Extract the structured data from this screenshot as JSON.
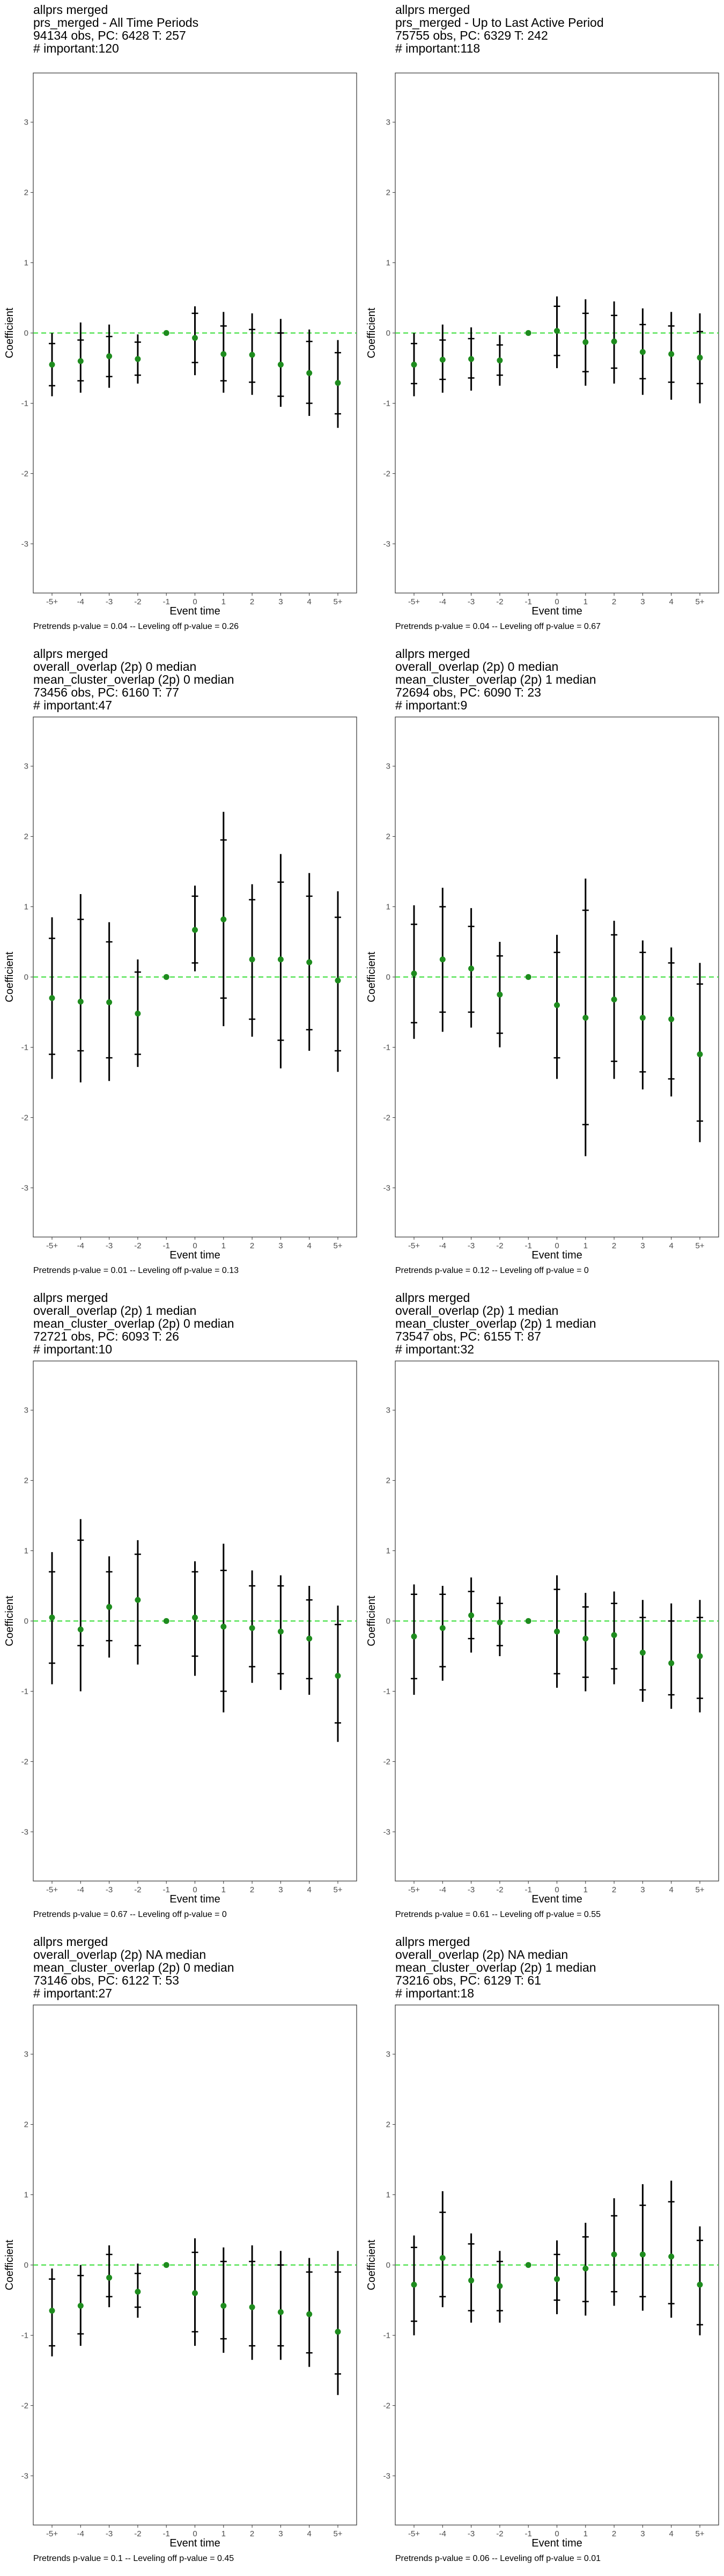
{
  "chart_data": [
    {
      "type": "scatter",
      "title_lines": [
        "allprs merged",
        "prs_merged - All Time Periods",
        "94134 obs, PC: 6428 T: 257",
        "# important:120"
      ],
      "xlabel": "Event time",
      "ylabel": "Coefficient",
      "categories": [
        "-5+",
        "-4",
        "-3",
        "-2",
        "-1",
        "0",
        "1",
        "2",
        "3",
        "4",
        "5+"
      ],
      "ylim": [
        -3.7,
        3.7
      ],
      "yticks": [
        -3,
        -2,
        -1,
        0,
        1,
        2,
        3
      ],
      "reference_line": 0,
      "footer": "Pretrends p-value = 0.04 -- Leveling off p-value = 0.26",
      "estimate": [
        -0.45,
        -0.4,
        -0.33,
        -0.37,
        0,
        -0.07,
        -0.3,
        -0.31,
        -0.45,
        -0.57,
        -0.71
      ],
      "ci_outer": [
        [
          -0.9,
          0.0
        ],
        [
          -0.85,
          0.15
        ],
        [
          -0.78,
          0.12
        ],
        [
          -0.72,
          -0.02
        ],
        [
          0,
          0
        ],
        [
          -0.6,
          0.38
        ],
        [
          -0.85,
          0.3
        ],
        [
          -0.88,
          0.28
        ],
        [
          -1.05,
          0.2
        ],
        [
          -1.18,
          0.05
        ],
        [
          -1.35,
          -0.1
        ]
      ],
      "ci_inner": [
        [
          -0.75,
          -0.15
        ],
        [
          -0.68,
          -0.1
        ],
        [
          -0.62,
          -0.05
        ],
        [
          -0.6,
          -0.13
        ],
        [
          0,
          0
        ],
        [
          -0.42,
          0.28
        ],
        [
          -0.68,
          0.1
        ],
        [
          -0.7,
          0.05
        ],
        [
          -0.9,
          0.0
        ],
        [
          -1.0,
          -0.12
        ],
        [
          -1.15,
          -0.28
        ]
      ]
    },
    {
      "type": "scatter",
      "title_lines": [
        "allprs merged",
        "prs_merged - Up to Last Active Period",
        "75755 obs, PC: 6329 T: 242",
        "# important:118"
      ],
      "xlabel": "Event time",
      "ylabel": "Coefficient",
      "categories": [
        "-5+",
        "-4",
        "-3",
        "-2",
        "-1",
        "0",
        "1",
        "2",
        "3",
        "4",
        "5+"
      ],
      "ylim": [
        -3.7,
        3.7
      ],
      "yticks": [
        -3,
        -2,
        -1,
        0,
        1,
        2,
        3
      ],
      "reference_line": 0,
      "footer": "Pretrends p-value = 0.04 -- Leveling off p-value = 0.67",
      "estimate": [
        -0.45,
        -0.38,
        -0.37,
        -0.39,
        0,
        0.03,
        -0.13,
        -0.12,
        -0.27,
        -0.3,
        -0.35
      ],
      "ci_outer": [
        [
          -0.9,
          0.0
        ],
        [
          -0.85,
          0.12
        ],
        [
          -0.82,
          0.08
        ],
        [
          -0.75,
          -0.03
        ],
        [
          0,
          0
        ],
        [
          -0.5,
          0.52
        ],
        [
          -0.75,
          0.48
        ],
        [
          -0.72,
          0.45
        ],
        [
          -0.88,
          0.35
        ],
        [
          -0.95,
          0.3
        ],
        [
          -1.0,
          0.28
        ]
      ],
      "ci_inner": [
        [
          -0.72,
          -0.15
        ],
        [
          -0.66,
          -0.1
        ],
        [
          -0.64,
          -0.08
        ],
        [
          -0.6,
          -0.17
        ],
        [
          0,
          0
        ],
        [
          -0.32,
          0.38
        ],
        [
          -0.55,
          0.28
        ],
        [
          -0.5,
          0.25
        ],
        [
          -0.65,
          0.12
        ],
        [
          -0.7,
          0.1
        ],
        [
          -0.72,
          0.02
        ]
      ]
    },
    {
      "type": "scatter",
      "title_lines": [
        "allprs merged",
        "overall_overlap (2p) 0 median",
        "mean_cluster_overlap (2p) 0 median",
        "73456 obs, PC: 6160 T: 77",
        "# important:47"
      ],
      "xlabel": "Event time",
      "ylabel": "Coefficient",
      "categories": [
        "-5+",
        "-4",
        "-3",
        "-2",
        "-1",
        "0",
        "1",
        "2",
        "3",
        "4",
        "5+"
      ],
      "ylim": [
        -3.7,
        3.7
      ],
      "yticks": [
        -3,
        -2,
        -1,
        0,
        1,
        2,
        3
      ],
      "reference_line": 0,
      "footer": "Pretrends p-value = 0.01 -- Leveling off p-value = 0.13",
      "estimate": [
        -0.3,
        -0.35,
        -0.36,
        -0.52,
        0,
        0.67,
        0.82,
        0.25,
        0.25,
        0.21,
        -0.05
      ],
      "ci_outer": [
        [
          -1.45,
          0.85
        ],
        [
          -1.5,
          1.18
        ],
        [
          -1.48,
          0.78
        ],
        [
          -1.28,
          0.25
        ],
        [
          0,
          0
        ],
        [
          0.08,
          1.3
        ],
        [
          -0.7,
          2.35
        ],
        [
          -0.85,
          1.32
        ],
        [
          -1.3,
          1.75
        ],
        [
          -1.05,
          1.48
        ],
        [
          -1.35,
          1.22
        ]
      ],
      "ci_inner": [
        [
          -1.1,
          0.55
        ],
        [
          -1.05,
          0.82
        ],
        [
          -1.15,
          0.5
        ],
        [
          -1.1,
          0.07
        ],
        [
          0,
          0
        ],
        [
          0.2,
          1.15
        ],
        [
          -0.3,
          1.95
        ],
        [
          -0.6,
          1.1
        ],
        [
          -0.9,
          1.35
        ],
        [
          -0.75,
          1.15
        ],
        [
          -1.05,
          0.85
        ]
      ]
    },
    {
      "type": "scatter",
      "title_lines": [
        "allprs merged",
        "overall_overlap (2p) 0 median",
        "mean_cluster_overlap (2p) 1 median",
        "72694 obs, PC: 6090 T: 23",
        "# important:9"
      ],
      "xlabel": "Event time",
      "ylabel": "Coefficient",
      "categories": [
        "-5+",
        "-4",
        "-3",
        "-2",
        "-1",
        "0",
        "1",
        "2",
        "3",
        "4",
        "5+"
      ],
      "ylim": [
        -3.7,
        3.7
      ],
      "yticks": [
        -3,
        -2,
        -1,
        0,
        1,
        2,
        3
      ],
      "reference_line": 0,
      "footer": "Pretrends p-value = 0.12 -- Leveling off p-value = 0",
      "estimate": [
        0.05,
        0.25,
        0.12,
        -0.25,
        0,
        -0.4,
        -0.58,
        -0.32,
        -0.58,
        -0.6,
        -1.1
      ],
      "ci_outer": [
        [
          -0.88,
          1.02
        ],
        [
          -0.78,
          1.27
        ],
        [
          -0.72,
          0.98
        ],
        [
          -1.0,
          0.5
        ],
        [
          0,
          0
        ],
        [
          -1.45,
          0.6
        ],
        [
          -2.55,
          1.4
        ],
        [
          -1.45,
          0.8
        ],
        [
          -1.6,
          0.52
        ],
        [
          -1.7,
          0.42
        ],
        [
          -2.35,
          0.2
        ]
      ],
      "ci_inner": [
        [
          -0.65,
          0.75
        ],
        [
          -0.5,
          1.0
        ],
        [
          -0.5,
          0.72
        ],
        [
          -0.8,
          0.3
        ],
        [
          0,
          0
        ],
        [
          -1.15,
          0.35
        ],
        [
          -2.1,
          0.95
        ],
        [
          -1.2,
          0.6
        ],
        [
          -1.35,
          0.35
        ],
        [
          -1.45,
          0.2
        ],
        [
          -2.05,
          -0.1
        ]
      ]
    },
    {
      "type": "scatter",
      "title_lines": [
        "allprs merged",
        "overall_overlap (2p) 1 median",
        "mean_cluster_overlap (2p) 0 median",
        "72721 obs, PC: 6093 T: 26",
        "# important:10"
      ],
      "xlabel": "Event time",
      "ylabel": "Coefficient",
      "categories": [
        "-5+",
        "-4",
        "-3",
        "-2",
        "-1",
        "0",
        "1",
        "2",
        "3",
        "4",
        "5+"
      ],
      "ylim": [
        -3.7,
        3.7
      ],
      "yticks": [
        -3,
        -2,
        -1,
        0,
        1,
        2,
        3
      ],
      "reference_line": 0,
      "footer": "Pretrends p-value = 0.67 -- Leveling off p-value = 0",
      "estimate": [
        0.05,
        -0.12,
        0.2,
        0.3,
        0,
        0.05,
        -0.08,
        -0.1,
        -0.15,
        -0.25,
        -0.78
      ],
      "ci_outer": [
        [
          -0.9,
          0.98
        ],
        [
          -1.0,
          1.45
        ],
        [
          -0.52,
          0.92
        ],
        [
          -0.62,
          1.15
        ],
        [
          0,
          0
        ],
        [
          -0.78,
          0.85
        ],
        [
          -1.3,
          1.1
        ],
        [
          -0.88,
          0.72
        ],
        [
          -0.98,
          0.65
        ],
        [
          -1.05,
          0.5
        ],
        [
          -1.72,
          0.22
        ]
      ],
      "ci_inner": [
        [
          -0.6,
          0.7
        ],
        [
          -0.35,
          1.15
        ],
        [
          -0.28,
          0.7
        ],
        [
          -0.35,
          0.95
        ],
        [
          0,
          0
        ],
        [
          -0.5,
          0.7
        ],
        [
          -1.0,
          0.72
        ],
        [
          -0.65,
          0.5
        ],
        [
          -0.75,
          0.5
        ],
        [
          -0.82,
          0.3
        ],
        [
          -1.45,
          -0.05
        ]
      ]
    },
    {
      "type": "scatter",
      "title_lines": [
        "allprs merged",
        "overall_overlap (2p) 1 median",
        "mean_cluster_overlap (2p) 1 median",
        "73547 obs, PC: 6155 T: 87",
        "# important:32"
      ],
      "xlabel": "Event time",
      "ylabel": "Coefficient",
      "categories": [
        "-5+",
        "-4",
        "-3",
        "-2",
        "-1",
        "0",
        "1",
        "2",
        "3",
        "4",
        "5+"
      ],
      "ylim": [
        -3.7,
        3.7
      ],
      "yticks": [
        -3,
        -2,
        -1,
        0,
        1,
        2,
        3
      ],
      "reference_line": 0,
      "footer": "Pretrends p-value = 0.61 -- Leveling off p-value = 0.55",
      "estimate": [
        -0.22,
        -0.1,
        0.08,
        -0.02,
        0,
        -0.15,
        -0.25,
        -0.2,
        -0.45,
        -0.6,
        -0.5
      ],
      "ci_outer": [
        [
          -1.05,
          0.52
        ],
        [
          -0.85,
          0.5
        ],
        [
          -0.45,
          0.62
        ],
        [
          -0.5,
          0.35
        ],
        [
          0,
          0
        ],
        [
          -0.95,
          0.65
        ],
        [
          -1.0,
          0.4
        ],
        [
          -0.9,
          0.42
        ],
        [
          -1.15,
          0.3
        ],
        [
          -1.25,
          0.25
        ],
        [
          -1.3,
          0.3
        ]
      ],
      "ci_inner": [
        [
          -0.82,
          0.38
        ],
        [
          -0.65,
          0.38
        ],
        [
          -0.25,
          0.42
        ],
        [
          -0.35,
          0.25
        ],
        [
          0,
          0
        ],
        [
          -0.75,
          0.45
        ],
        [
          -0.8,
          0.2
        ],
        [
          -0.68,
          0.25
        ],
        [
          -0.98,
          0.05
        ],
        [
          -1.05,
          0.0
        ],
        [
          -1.1,
          0.05
        ]
      ]
    },
    {
      "type": "scatter",
      "title_lines": [
        "allprs merged",
        "overall_overlap (2p) NA median",
        "mean_cluster_overlap (2p) 0 median",
        "73146 obs, PC: 6122 T: 53",
        "# important:27"
      ],
      "xlabel": "Event time",
      "ylabel": "Coefficient",
      "categories": [
        "-5+",
        "-4",
        "-3",
        "-2",
        "-1",
        "0",
        "1",
        "2",
        "3",
        "4",
        "5+"
      ],
      "ylim": [
        -3.7,
        3.7
      ],
      "yticks": [
        -3,
        -2,
        -1,
        0,
        1,
        2,
        3
      ],
      "reference_line": 0,
      "footer": "Pretrends p-value = 0.1 -- Leveling off p-value = 0.45",
      "estimate": [
        -0.65,
        -0.58,
        -0.18,
        -0.38,
        0,
        -0.4,
        -0.58,
        -0.6,
        -0.67,
        -0.7,
        -0.95
      ],
      "ci_outer": [
        [
          -1.3,
          -0.05
        ],
        [
          -1.15,
          0.0
        ],
        [
          -0.6,
          0.28
        ],
        [
          -0.75,
          0.02
        ],
        [
          0,
          0
        ],
        [
          -1.15,
          0.38
        ],
        [
          -1.25,
          0.25
        ],
        [
          -1.35,
          0.28
        ],
        [
          -1.35,
          0.2
        ],
        [
          -1.45,
          0.1
        ],
        [
          -1.85,
          0.2
        ]
      ],
      "ci_inner": [
        [
          -1.15,
          -0.2
        ],
        [
          -0.98,
          -0.15
        ],
        [
          -0.45,
          0.15
        ],
        [
          -0.6,
          -0.12
        ],
        [
          0,
          0
        ],
        [
          -0.95,
          0.18
        ],
        [
          -1.05,
          0.05
        ],
        [
          -1.15,
          0.05
        ],
        [
          -1.15,
          0.0
        ],
        [
          -1.25,
          -0.1
        ],
        [
          -1.55,
          -0.1
        ]
      ]
    },
    {
      "type": "scatter",
      "title_lines": [
        "allprs merged",
        "overall_overlap (2p) NA median",
        "mean_cluster_overlap (2p) 1 median",
        "73216 obs, PC: 6129 T: 61",
        "# important:18"
      ],
      "xlabel": "Event time",
      "ylabel": "Coefficient",
      "categories": [
        "-5+",
        "-4",
        "-3",
        "-2",
        "-1",
        "0",
        "1",
        "2",
        "3",
        "4",
        "5+"
      ],
      "ylim": [
        -3.7,
        3.7
      ],
      "yticks": [
        -3,
        -2,
        -1,
        0,
        1,
        2,
        3
      ],
      "reference_line": 0,
      "footer": "Pretrends p-value = 0.06 -- Leveling off p-value = 0.01",
      "estimate": [
        -0.28,
        0.1,
        -0.22,
        -0.3,
        0,
        -0.2,
        -0.05,
        0.15,
        0.15,
        0.12,
        -0.28
      ],
      "ci_outer": [
        [
          -1.0,
          0.42
        ],
        [
          -0.6,
          1.05
        ],
        [
          -0.82,
          0.45
        ],
        [
          -0.82,
          0.2
        ],
        [
          0,
          0
        ],
        [
          -0.7,
          0.35
        ],
        [
          -0.72,
          0.6
        ],
        [
          -0.58,
          0.95
        ],
        [
          -0.65,
          1.15
        ],
        [
          -0.75,
          1.2
        ],
        [
          -1.0,
          0.55
        ]
      ],
      "ci_inner": [
        [
          -0.8,
          0.25
        ],
        [
          -0.45,
          0.75
        ],
        [
          -0.65,
          0.3
        ],
        [
          -0.65,
          0.05
        ],
        [
          0,
          0
        ],
        [
          -0.5,
          0.15
        ],
        [
          -0.52,
          0.4
        ],
        [
          -0.38,
          0.7
        ],
        [
          -0.45,
          0.85
        ],
        [
          -0.55,
          0.9
        ],
        [
          -0.85,
          0.35
        ]
      ]
    }
  ]
}
